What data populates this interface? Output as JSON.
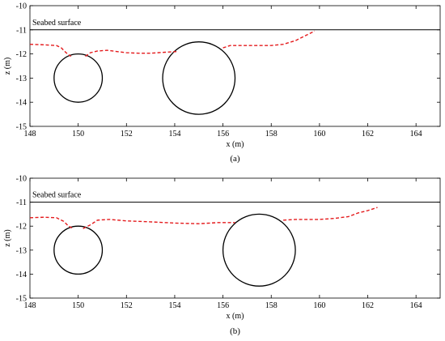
{
  "chart_data": [
    {
      "type": "line",
      "panel": "a",
      "caption": "(a)",
      "xlabel": "x (m)",
      "ylabel": "z (m)",
      "xlim": [
        148,
        165
      ],
      "ylim": [
        -15,
        -10
      ],
      "xticks": [
        148,
        150,
        152,
        154,
        156,
        158,
        160,
        162,
        164
      ],
      "yticks": [
        -10,
        -11,
        -12,
        -13,
        -14,
        -15
      ],
      "grid": false,
      "seabed": {
        "label": "Seabed surface",
        "z": -11
      },
      "circles": [
        {
          "cx": 150,
          "cz": -13,
          "r": 1
        },
        {
          "cx": 155,
          "cz": -13,
          "r": 1.5
        }
      ],
      "series": [
        {
          "color": "#e41a1c",
          "style": "dashed",
          "segments": [
            [
              [
                148,
                -11.6
              ],
              [
                148.6,
                -11.62
              ],
              [
                149.1,
                -11.65
              ],
              [
                149.3,
                -11.75
              ],
              [
                149.5,
                -11.95
              ],
              [
                149.7,
                -12.1
              ]
            ],
            [
              [
                150.3,
                -12.1
              ],
              [
                150.5,
                -11.95
              ],
              [
                150.8,
                -11.88
              ],
              [
                151.2,
                -11.85
              ],
              [
                152,
                -11.95
              ],
              [
                152.5,
                -11.97
              ],
              [
                153,
                -11.97
              ],
              [
                153.6,
                -11.93
              ],
              [
                154.1,
                -11.9
              ]
            ],
            [
              [
                156,
                -11.75
              ],
              [
                156.3,
                -11.65
              ],
              [
                157,
                -11.65
              ],
              [
                158,
                -11.65
              ],
              [
                158.5,
                -11.6
              ],
              [
                159,
                -11.45
              ],
              [
                159.5,
                -11.2
              ],
              [
                159.8,
                -11.05
              ]
            ]
          ]
        }
      ]
    },
    {
      "type": "line",
      "panel": "b",
      "caption": "(b)",
      "xlabel": "x (m)",
      "ylabel": "z (m)",
      "xlim": [
        148,
        165
      ],
      "ylim": [
        -15,
        -10
      ],
      "xticks": [
        148,
        150,
        152,
        154,
        156,
        158,
        160,
        162,
        164
      ],
      "yticks": [
        -10,
        -11,
        -12,
        -13,
        -14,
        -15
      ],
      "grid": false,
      "seabed": {
        "label": "Seabed surface",
        "z": -11
      },
      "circles": [
        {
          "cx": 150,
          "cz": -13,
          "r": 1
        },
        {
          "cx": 157.5,
          "cz": -13,
          "r": 1.5
        }
      ],
      "series": [
        {
          "color": "#e41a1c",
          "style": "dashed",
          "segments": [
            [
              [
                148,
                -11.65
              ],
              [
                148.6,
                -11.63
              ],
              [
                149.1,
                -11.65
              ],
              [
                149.4,
                -11.8
              ],
              [
                149.6,
                -12.0
              ],
              [
                149.8,
                -12.1
              ]
            ],
            [
              [
                150.2,
                -12.1
              ],
              [
                150.5,
                -11.95
              ],
              [
                150.8,
                -11.75
              ],
              [
                151.3,
                -11.72
              ],
              [
                152,
                -11.78
              ],
              [
                153,
                -11.82
              ],
              [
                154,
                -11.87
              ],
              [
                155,
                -11.9
              ],
              [
                155.8,
                -11.85
              ],
              [
                156.5,
                -11.85
              ]
            ],
            [
              [
                158.5,
                -11.75
              ],
              [
                159,
                -11.72
              ],
              [
                160,
                -11.72
              ],
              [
                160.6,
                -11.68
              ],
              [
                161.2,
                -11.6
              ],
              [
                161.6,
                -11.45
              ],
              [
                162,
                -11.35
              ],
              [
                162.4,
                -11.22
              ]
            ]
          ]
        }
      ]
    }
  ]
}
